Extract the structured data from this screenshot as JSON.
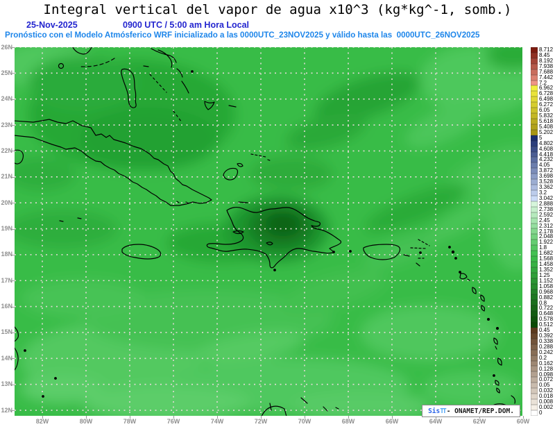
{
  "title": "Integral vertical del vapor de agua x10^3 (kg*kg^-1, somb.)",
  "subtitle": {
    "date": "25-Nov-2025",
    "time": "0900 UTC / 5:00 am Hora Local"
  },
  "forecast_line": "Pronóstico con el Modelo Atmósferico WRF inicializado a las 0000UTC_23NOV2025 y válido hasta las  0000UTC_26NOV2025",
  "axes": {
    "lat_labels": [
      "26N",
      "25N",
      "24N",
      "23N",
      "22N",
      "21N",
      "20N",
      "19N",
      "18N",
      "17N",
      "16N",
      "15N",
      "14N",
      "13N",
      "12N"
    ],
    "lon_labels": [
      "82W",
      "80W",
      "78W",
      "76W",
      "74W",
      "72W",
      "70W",
      "68W",
      "66W",
      "64W",
      "62W",
      "60W"
    ]
  },
  "colorbar": {
    "values": [
      "8.712",
      "8.45",
      "8.192",
      "7.938",
      "7.688",
      "7.442",
      "7.2",
      "6.962",
      "6.728",
      "6.498",
      "6.272",
      "6.05",
      "5.832",
      "5.618",
      "5.408",
      "5.202",
      "5",
      "4.802",
      "4.608",
      "4.418",
      "4.232",
      "4.05",
      "3.872",
      "3.698",
      "3.528",
      "3.362",
      "3.2",
      "3.042",
      "2.888",
      "2.738",
      "2.592",
      "2.45",
      "2.312",
      "2.178",
      "2.048",
      "1.922",
      "1.8",
      "1.682",
      "1.568",
      "1.458",
      "1.352",
      "1.25",
      "1.152",
      "1.058",
      "0.968",
      "0.882",
      "0.8",
      "0.722",
      "0.648",
      "0.578",
      "0.512",
      "0.45",
      "0.392",
      "0.338",
      "0.288",
      "0.242",
      "0.2",
      "0.162",
      "0.128",
      "0.098",
      "0.072",
      "0.05",
      "0.032",
      "0.018",
      "0.008",
      "0.002",
      "0"
    ],
    "segments": [
      {
        "count": 7,
        "from": "#7d1c10",
        "to": "#ef9584"
      },
      {
        "count": 9,
        "from": "#f2ee3e",
        "to": "#a89614"
      },
      {
        "count": 12,
        "from": "#1b2e6e",
        "to": "#ccdcf8"
      },
      {
        "count": 10,
        "from": "#d6f5db",
        "to": "#44c153"
      },
      {
        "count": 13,
        "from": "#3bbb4a",
        "to": "#0a4a05"
      },
      {
        "count": 15,
        "from": "#5c3a1d",
        "to": "#f5efe6"
      },
      {
        "count": 1,
        "from": "#ffffff",
        "to": "#ffffff"
      }
    ]
  },
  "watermark": {
    "sis": "Sis",
    "tt": "TT",
    "rest": "- ONAMET/REP.DOM."
  },
  "colors": {
    "subtitle_blue": "#2325cf",
    "forecast_blue": "#1e86ea",
    "axis_label_gray": "#8f8f8f",
    "map_base_green": "#38bc47",
    "dark_minimum_green": "#0e6319",
    "gridline": "#e3dad6",
    "coastline": "#000000"
  },
  "chart_data": {
    "type": "heatmap",
    "title": "Integral vertical del vapor de agua x10^3 (kg*kg^-1, somb.)",
    "units": "kg*kg^-1 x10^3",
    "valid_time": "25-Nov-2025 0900 UTC / 5:00 am Hora Local",
    "model": "WRF",
    "initialized": "0000UTC_23NOV2025",
    "valid_until": "0000UTC_26NOV2025",
    "x_axis": {
      "label": "longitude",
      "ticks": [
        "82W",
        "80W",
        "78W",
        "76W",
        "74W",
        "72W",
        "70W",
        "68W",
        "66W",
        "64W",
        "62W",
        "60W"
      ]
    },
    "y_axis": {
      "label": "latitude",
      "ticks": [
        "26N",
        "25N",
        "24N",
        "23N",
        "22N",
        "21N",
        "20N",
        "19N",
        "18N",
        "17N",
        "16N",
        "15N",
        "14N",
        "13N",
        "12N"
      ]
    },
    "colorbar_levels": [
      8.712,
      8.45,
      8.192,
      7.938,
      7.688,
      7.442,
      7.2,
      6.962,
      6.728,
      6.498,
      6.272,
      6.05,
      5.832,
      5.618,
      5.408,
      5.202,
      5,
      4.802,
      4.608,
      4.418,
      4.232,
      4.05,
      3.872,
      3.698,
      3.528,
      3.362,
      3.2,
      3.042,
      2.888,
      2.738,
      2.592,
      2.45,
      2.312,
      2.178,
      2.048,
      1.922,
      1.8,
      1.682,
      1.568,
      1.458,
      1.352,
      1.25,
      1.152,
      1.058,
      0.968,
      0.882,
      0.8,
      0.722,
      0.648,
      0.578,
      0.512,
      0.45,
      0.392,
      0.338,
      0.288,
      0.242,
      0.2,
      0.162,
      0.128,
      0.098,
      0.072,
      0.05,
      0.032,
      0.018,
      0.008,
      0.002,
      0
    ],
    "legend_position": "right",
    "grid": "dashed, 1-degree latitude / 2-degree longitude",
    "field_summary": "Water-vapor field over the Caribbean shown in mid greens (~1.4-2.3); pronounced dark-green relative minimum (~0.6-1.0) centered over central Hispaniola; slightly darker band over the Florida Straits / north-central Cuba; lighter greens (~2.3-2.6) over the southern Caribbean, lower-left quadrant and northeast corner."
  }
}
